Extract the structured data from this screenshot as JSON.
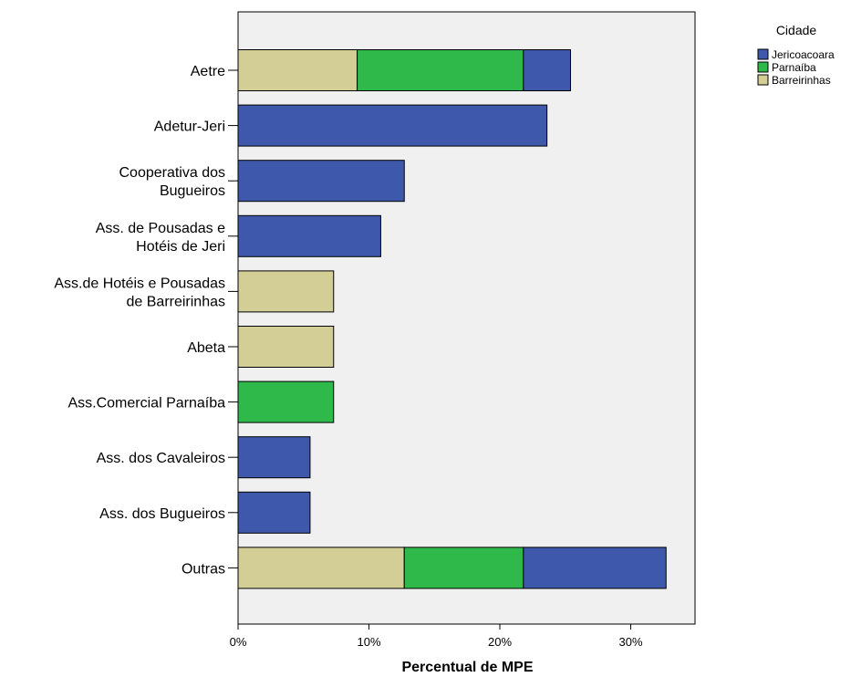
{
  "chart_data": {
    "type": "bar",
    "orientation": "horizontal",
    "stacked": true,
    "categories": [
      [
        "Aetre"
      ],
      [
        "Adetur-Jeri"
      ],
      [
        "Cooperativa dos",
        "Bugueiros"
      ],
      [
        "Ass. de Pousadas e",
        "Hotéis de Jeri"
      ],
      [
        "Ass.de Hotéis e Pousadas",
        "de Barreirinhas"
      ],
      [
        "Abeta"
      ],
      [
        "Ass.Comercial Parnaíba"
      ],
      [
        "Ass. dos Cavaleiros"
      ],
      [
        "Ass. dos Bugueiros"
      ],
      [
        "Outras"
      ]
    ],
    "series": [
      {
        "name": "Barreirinhas",
        "color": "#d3cd96",
        "values": [
          9.1,
          0,
          0,
          0,
          7.3,
          7.3,
          0,
          0,
          0,
          12.7
        ]
      },
      {
        "name": "Parnaíba",
        "color": "#2eb94a",
        "values": [
          12.7,
          0,
          0,
          0,
          0,
          0,
          7.3,
          0,
          0,
          9.1
        ]
      },
      {
        "name": "Jericoacoara",
        "color": "#3e58ac",
        "values": [
          3.6,
          23.6,
          12.7,
          10.9,
          0,
          0,
          0,
          5.5,
          5.5,
          10.9
        ]
      }
    ],
    "legend": {
      "title": "Cidade",
      "position": "top-right",
      "order": [
        "Jericoacoara",
        "Parnaíba",
        "Barreirinhas"
      ]
    },
    "xlabel": "Percentual de MPE",
    "xlim": [
      0,
      35
    ],
    "xticks": [
      0,
      10,
      20,
      30
    ],
    "xtick_labels": [
      "0%",
      "10%",
      "20%",
      "30%"
    ],
    "plot_background": "#f0f0f0",
    "grid": false
  }
}
